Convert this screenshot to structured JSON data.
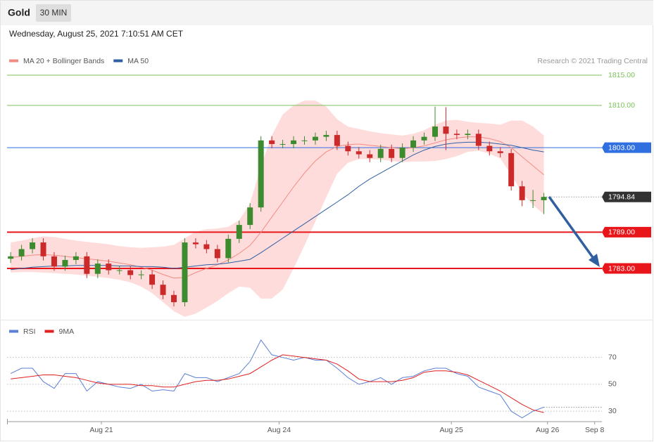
{
  "header": {
    "title": "Gold",
    "interval": "30 MIN",
    "timestamp": "Wednesday, August 25, 2021 7:10:51 AM CET",
    "credit": "Research © 2021 Trading Central"
  },
  "chart_data": [
    {
      "type": "candlestick",
      "up_color": "#3d8b2f",
      "down_color": "#cc2a2a",
      "x": [
        0,
        3,
        6,
        9,
        12,
        15,
        18,
        21,
        24,
        27,
        30,
        33,
        36,
        39,
        42,
        45,
        48,
        51,
        54,
        57,
        60,
        63,
        66,
        69,
        72,
        75,
        78,
        81,
        84,
        87,
        90,
        93,
        96,
        99,
        102,
        105,
        108,
        111,
        114,
        117,
        120,
        123,
        126,
        129,
        132,
        135,
        138,
        141,
        144,
        147
      ],
      "open": [
        1784.6,
        1785.0,
        1786.2,
        1787.3,
        1785.0,
        1783.3,
        1784.4,
        1785.0,
        1782.1,
        1783.8,
        1782.7,
        1782.7,
        1781.9,
        1782.0,
        1780.3,
        1778.6,
        1777.4,
        1787.3,
        1787.0,
        1786.2,
        1784.7,
        1787.9,
        1790.2,
        1793.1,
        1804.2,
        1803.6,
        1803.6,
        1804.2,
        1804.2,
        1804.8,
        1805.1,
        1803.3,
        1802.4,
        1801.9,
        1801.3,
        1802.8,
        1801.3,
        1803.0,
        1804.2,
        1804.8,
        1806.5,
        1805.3,
        1805.1,
        1805.3,
        1803.3,
        1802.4,
        1802.1,
        1796.6,
        1794.3,
        1794.3
      ],
      "high": [
        1785.7,
        1786.9,
        1788.0,
        1788.0,
        1785.7,
        1785.1,
        1785.7,
        1785.7,
        1784.5,
        1784.5,
        1783.4,
        1783.4,
        1782.7,
        1782.7,
        1781.0,
        1779.3,
        1788.0,
        1788.0,
        1787.7,
        1786.9,
        1788.6,
        1790.9,
        1793.8,
        1804.9,
        1804.9,
        1804.3,
        1804.9,
        1804.9,
        1805.5,
        1805.8,
        1805.8,
        1804.0,
        1803.1,
        1802.6,
        1803.5,
        1803.5,
        1803.7,
        1804.9,
        1805.5,
        1809.8,
        1809.7,
        1806.0,
        1806.0,
        1806.0,
        1804.0,
        1803.1,
        1802.8,
        1797.5,
        1796.0,
        1795.5
      ],
      "low": [
        1783.9,
        1784.3,
        1785.5,
        1784.3,
        1782.6,
        1782.6,
        1783.7,
        1781.4,
        1781.4,
        1782.0,
        1782.0,
        1781.2,
        1781.2,
        1779.6,
        1777.9,
        1776.7,
        1776.7,
        1786.3,
        1785.5,
        1784.0,
        1784.0,
        1787.2,
        1789.5,
        1792.4,
        1802.9,
        1802.9,
        1802.9,
        1803.5,
        1803.5,
        1804.1,
        1802.6,
        1801.7,
        1801.2,
        1800.6,
        1800.6,
        1800.6,
        1800.6,
        1802.3,
        1803.5,
        1804.1,
        1802.6,
        1804.4,
        1804.4,
        1802.6,
        1801.7,
        1801.4,
        1795.9,
        1793.3,
        1793.0,
        1792.0
      ],
      "close": [
        1785.0,
        1786.2,
        1787.3,
        1785.0,
        1783.3,
        1784.4,
        1785.0,
        1782.1,
        1783.8,
        1782.7,
        1782.7,
        1781.9,
        1782.0,
        1780.3,
        1778.6,
        1777.4,
        1787.3,
        1787.0,
        1786.2,
        1784.7,
        1787.9,
        1790.2,
        1793.1,
        1804.2,
        1803.6,
        1803.6,
        1804.2,
        1804.2,
        1804.8,
        1805.1,
        1803.3,
        1802.4,
        1801.9,
        1801.3,
        1802.8,
        1801.3,
        1803.0,
        1804.2,
        1804.8,
        1806.5,
        1805.3,
        1805.1,
        1805.3,
        1803.3,
        1802.4,
        1802.1,
        1796.6,
        1794.3,
        1794.3,
        1794.84
      ],
      "overlays": [
        {
          "name": "MA 20 + Bollinger Bands",
          "color": "#f28b82",
          "band_color": "#ffdcdc",
          "values": [
            1784.8,
            1785.0,
            1785.2,
            1785.3,
            1785.2,
            1785.0,
            1784.8,
            1784.6,
            1784.4,
            1784.2,
            1783.9,
            1783.6,
            1783.2,
            1782.7,
            1782.0,
            1781.4,
            1781.5,
            1782.3,
            1783.0,
            1783.6,
            1784.4,
            1785.5,
            1786.8,
            1789.0,
            1791.5,
            1794.0,
            1796.5,
            1798.8,
            1800.8,
            1802.3,
            1803.2,
            1803.5,
            1803.6,
            1803.4,
            1803.2,
            1803.0,
            1802.8,
            1803.0,
            1803.3,
            1803.8,
            1804.3,
            1804.6,
            1804.8,
            1804.8,
            1804.5,
            1804.0,
            1803.0,
            1801.5,
            1800.0,
            1798.5
          ],
          "upper": [
            1787.3,
            1787.6,
            1788.0,
            1788.3,
            1788.2,
            1787.9,
            1787.6,
            1787.4,
            1787.2,
            1787.0,
            1786.7,
            1786.5,
            1786.4,
            1786.5,
            1786.6,
            1786.9,
            1788.0,
            1789.1,
            1789.5,
            1789.6,
            1789.9,
            1791.0,
            1793.8,
            1800.0,
            1805.0,
            1808.5,
            1810.0,
            1810.8,
            1810.8,
            1809.8,
            1807.7,
            1806.5,
            1806.1,
            1805.7,
            1805.4,
            1805.2,
            1805.0,
            1805.3,
            1805.9,
            1806.8,
            1807.5,
            1807.6,
            1807.3,
            1807.1,
            1807.0,
            1806.8,
            1807.5,
            1807.5,
            1806.5,
            1805.0
          ],
          "lower": [
            1782.3,
            1782.4,
            1782.4,
            1782.3,
            1782.2,
            1782.1,
            1782.0,
            1781.8,
            1781.6,
            1781.4,
            1781.1,
            1780.7,
            1780.0,
            1778.9,
            1777.4,
            1775.9,
            1775.0,
            1775.5,
            1776.5,
            1777.6,
            1778.9,
            1780.0,
            1779.8,
            1778.0,
            1778.0,
            1779.5,
            1783.0,
            1786.8,
            1790.8,
            1794.8,
            1798.7,
            1800.5,
            1801.1,
            1801.1,
            1801.0,
            1800.8,
            1800.6,
            1800.7,
            1800.7,
            1800.8,
            1801.1,
            1801.6,
            1802.3,
            1802.5,
            1802.0,
            1801.2,
            1798.5,
            1795.5,
            1793.5,
            1792.0
          ]
        },
        {
          "name": "MA 50",
          "color": "#2e5fa3",
          "values": [
            1782.8,
            1783.0,
            1783.2,
            1783.3,
            1783.4,
            1783.4,
            1783.5,
            1783.5,
            1783.5,
            1783.5,
            1783.4,
            1783.4,
            1783.3,
            1783.3,
            1783.2,
            1783.0,
            1783.2,
            1783.4,
            1783.6,
            1783.7,
            1783.9,
            1784.2,
            1784.5,
            1785.6,
            1786.8,
            1788.0,
            1789.2,
            1790.4,
            1791.6,
            1792.8,
            1794.0,
            1795.2,
            1796.6,
            1797.8,
            1798.8,
            1799.8,
            1800.8,
            1801.8,
            1802.6,
            1803.2,
            1803.6,
            1803.8,
            1803.9,
            1803.9,
            1803.8,
            1803.6,
            1803.4,
            1803.0,
            1802.6,
            1802.3
          ]
        }
      ],
      "levels": [
        {
          "value": 1815,
          "label": "1815.00",
          "color": "#7cc25a",
          "line": "thin",
          "box": false
        },
        {
          "value": 1810,
          "label": "1810.00",
          "color": "#7cc25a",
          "line": "thin",
          "box": false
        },
        {
          "value": 1803,
          "label": "1803.00",
          "color": "#2f6fe0",
          "line": "thin",
          "box": true
        },
        {
          "value": 1794.84,
          "label": "1794.84",
          "color": "#333333",
          "line": "dotted",
          "box": true
        },
        {
          "value": 1789,
          "label": "1789.00",
          "color": "#e8161b",
          "line": "thick",
          "box": true
        },
        {
          "value": 1783,
          "label": "1783.00",
          "color": "#e8161b",
          "line": "thick",
          "box": true
        }
      ],
      "xlim": [
        -1,
        163
      ],
      "ylim": [
        1774.5,
        1816.4
      ],
      "xticks": [
        {
          "value": 25,
          "label": "Aug 21"
        },
        {
          "value": 74,
          "label": "Aug 24"
        },
        {
          "value": 121.5,
          "label": "Aug 25"
        },
        {
          "value": 148,
          "label": "Aug 26"
        },
        {
          "value": 161,
          "label": "Sep 8"
        }
      ]
    },
    {
      "type": "line",
      "series": [
        {
          "name": "RSI",
          "color": "#5b7fd6",
          "values": [
            58,
            62,
            62,
            52,
            47,
            58,
            58,
            45,
            52,
            50,
            48,
            47,
            50,
            45,
            46,
            45,
            58,
            55,
            55,
            52,
            55,
            58,
            67,
            83,
            72,
            70,
            68,
            70,
            68,
            68,
            62,
            55,
            50,
            52,
            55,
            50,
            55,
            56,
            60,
            62,
            62,
            58,
            56,
            48,
            45,
            42,
            30,
            25,
            30,
            33
          ]
        },
        {
          "name": "9MA",
          "color": "#e02020",
          "values": [
            54,
            55,
            56,
            57,
            57,
            56,
            55,
            53,
            51,
            50,
            50,
            50,
            49,
            49,
            48,
            48,
            50,
            52,
            53,
            53,
            54,
            56,
            58,
            63,
            68,
            72,
            71,
            70,
            69,
            68,
            65,
            60,
            54,
            52,
            52,
            52,
            53,
            55,
            59,
            60,
            60,
            59,
            57,
            53,
            49,
            45,
            40,
            35,
            31,
            29
          ]
        }
      ],
      "ylim": [
        23.3,
        85
      ],
      "yticks": [
        30,
        50,
        70
      ]
    }
  ]
}
